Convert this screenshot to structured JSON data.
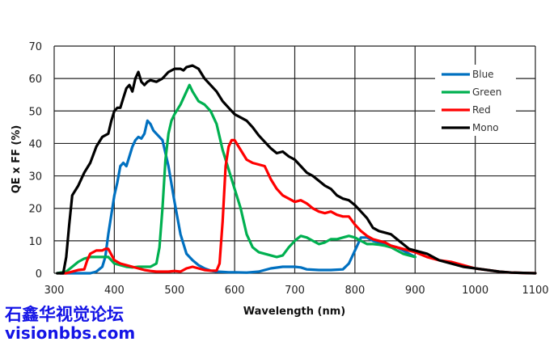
{
  "chart_data": {
    "type": "line",
    "title": "",
    "xlabel": "Wavelength (nm)",
    "ylabel": "QE x FF (%)",
    "xlim": [
      300,
      1100
    ],
    "ylim": [
      0,
      70
    ],
    "xticks": [
      300,
      400,
      500,
      600,
      700,
      800,
      900,
      1000,
      1100
    ],
    "yticks": [
      0,
      10,
      20,
      30,
      40,
      50,
      60,
      70
    ],
    "grid": true,
    "legend_position": "top-right",
    "series": [
      {
        "name": "Blue",
        "color": "#0070c0",
        "x": [
          310,
          330,
          350,
          360,
          370,
          380,
          385,
          390,
          400,
          405,
          410,
          415,
          420,
          425,
          430,
          435,
          440,
          445,
          450,
          455,
          460,
          465,
          470,
          480,
          490,
          500,
          510,
          520,
          530,
          540,
          550,
          560,
          570,
          580,
          590,
          600,
          620,
          640,
          660,
          680,
          700,
          710,
          720,
          740,
          760,
          780,
          790,
          800,
          810,
          820,
          830,
          840,
          850,
          860,
          870,
          880,
          890,
          900
        ],
        "y": [
          0,
          0,
          0,
          0,
          0.5,
          2,
          5,
          12,
          24,
          28,
          33,
          34,
          33,
          36,
          39,
          41,
          42,
          41.5,
          43,
          47,
          46,
          44,
          43,
          41,
          33,
          22,
          12,
          6,
          4,
          2.5,
          1.5,
          0.8,
          0.5,
          0.4,
          0.3,
          0.3,
          0.2,
          0.5,
          1.5,
          2,
          2,
          1.8,
          1.2,
          1,
          1,
          1.2,
          3,
          7,
          11,
          11,
          10,
          9.5,
          9,
          8.5,
          8,
          7,
          6,
          5
        ]
      },
      {
        "name": "Green",
        "color": "#00b050",
        "x": [
          305,
          320,
          330,
          340,
          350,
          360,
          370,
          380,
          390,
          395,
          400,
          410,
          420,
          430,
          440,
          450,
          460,
          470,
          475,
          480,
          485,
          490,
          495,
          500,
          510,
          520,
          525,
          530,
          540,
          550,
          560,
          570,
          580,
          590,
          600,
          610,
          620,
          630,
          640,
          650,
          660,
          670,
          680,
          690,
          700,
          710,
          720,
          730,
          740,
          750,
          760,
          770,
          780,
          790,
          800,
          810,
          820,
          830,
          840,
          850,
          860,
          870,
          880,
          890,
          900
        ],
        "y": [
          0,
          0.5,
          2,
          3.5,
          4.5,
          5,
          5,
          5,
          5,
          4,
          3,
          2.5,
          2,
          1.8,
          2,
          2,
          2,
          3,
          8,
          20,
          35,
          43,
          47,
          49,
          52,
          56,
          58,
          56,
          53,
          52,
          50,
          46,
          38,
          32,
          26,
          20,
          12,
          8,
          6.5,
          6,
          5.5,
          5,
          5.5,
          8,
          10,
          11.5,
          11,
          10,
          9,
          9.5,
          10.5,
          10.5,
          11,
          11.5,
          11,
          10,
          9,
          9,
          8.8,
          8.5,
          8,
          7,
          6,
          5.5,
          5
        ]
      },
      {
        "name": "Red",
        "color": "#ff0000",
        "x": [
          310,
          320,
          330,
          340,
          350,
          355,
          360,
          370,
          380,
          385,
          390,
          400,
          410,
          420,
          430,
          440,
          450,
          460,
          470,
          480,
          490,
          500,
          510,
          520,
          530,
          540,
          550,
          560,
          570,
          575,
          580,
          585,
          590,
          595,
          600,
          610,
          620,
          630,
          640,
          650,
          660,
          670,
          680,
          690,
          700,
          710,
          720,
          730,
          740,
          750,
          760,
          770,
          780,
          790,
          800,
          810,
          820,
          830,
          840,
          850,
          860,
          870,
          880,
          890,
          900,
          920,
          940,
          960,
          980,
          1000,
          1020,
          1040,
          1060,
          1080,
          1100
        ],
        "y": [
          0,
          0,
          0.5,
          1,
          1.2,
          4,
          6,
          7,
          7,
          7.5,
          7.5,
          4,
          3,
          2.5,
          2,
          1.5,
          1,
          0.7,
          0.5,
          0.5,
          0.5,
          0.7,
          0.5,
          1.5,
          2,
          1.5,
          1,
          0.8,
          0.8,
          3,
          16,
          33,
          39,
          41,
          41,
          38,
          35,
          34,
          33.5,
          33,
          29,
          26,
          24,
          23,
          22,
          22.5,
          21.5,
          20,
          19,
          18.5,
          19,
          18,
          17.5,
          17.5,
          15,
          13,
          11.5,
          10.5,
          10,
          9.5,
          8.5,
          8,
          7.5,
          7,
          6.5,
          5,
          4,
          3.5,
          2.5,
          1.5,
          1,
          0.5,
          0.2,
          0.1,
          0
        ]
      },
      {
        "name": "Mono",
        "color": "#000000",
        "x": [
          305,
          315,
          320,
          325,
          330,
          340,
          350,
          360,
          370,
          380,
          390,
          395,
          400,
          405,
          410,
          415,
          420,
          425,
          430,
          435,
          440,
          445,
          450,
          455,
          460,
          470,
          480,
          490,
          500,
          510,
          515,
          520,
          530,
          540,
          550,
          560,
          570,
          580,
          590,
          600,
          610,
          620,
          630,
          640,
          650,
          660,
          670,
          680,
          690,
          700,
          710,
          720,
          730,
          740,
          750,
          760,
          770,
          780,
          790,
          800,
          810,
          820,
          830,
          840,
          850,
          860,
          870,
          880,
          890,
          900,
          920,
          940,
          960,
          980,
          1000,
          1020,
          1040,
          1060,
          1080,
          1100
        ],
        "y": [
          0,
          0,
          5,
          15,
          24,
          27,
          31,
          34,
          39,
          42,
          43,
          47,
          50,
          51,
          51,
          54,
          57,
          58,
          56,
          60,
          62,
          59,
          58,
          59,
          59.5,
          59,
          60,
          62,
          63,
          63,
          62.5,
          63.5,
          64,
          63,
          60,
          58,
          56,
          53,
          51,
          49,
          48,
          47,
          45,
          42.5,
          40.5,
          38.5,
          37,
          37.5,
          36,
          35,
          33,
          31,
          30,
          28.5,
          27,
          26,
          24,
          23,
          22.5,
          21,
          19,
          17,
          14,
          13,
          12.5,
          12,
          10.5,
          9,
          7.5,
          7,
          6,
          4,
          3,
          2,
          1.5,
          1,
          0.5,
          0.2,
          0.1,
          0
        ]
      }
    ]
  },
  "watermark": {
    "line1": "石鑫华视觉论坛",
    "line2": "visionbbs.com"
  }
}
